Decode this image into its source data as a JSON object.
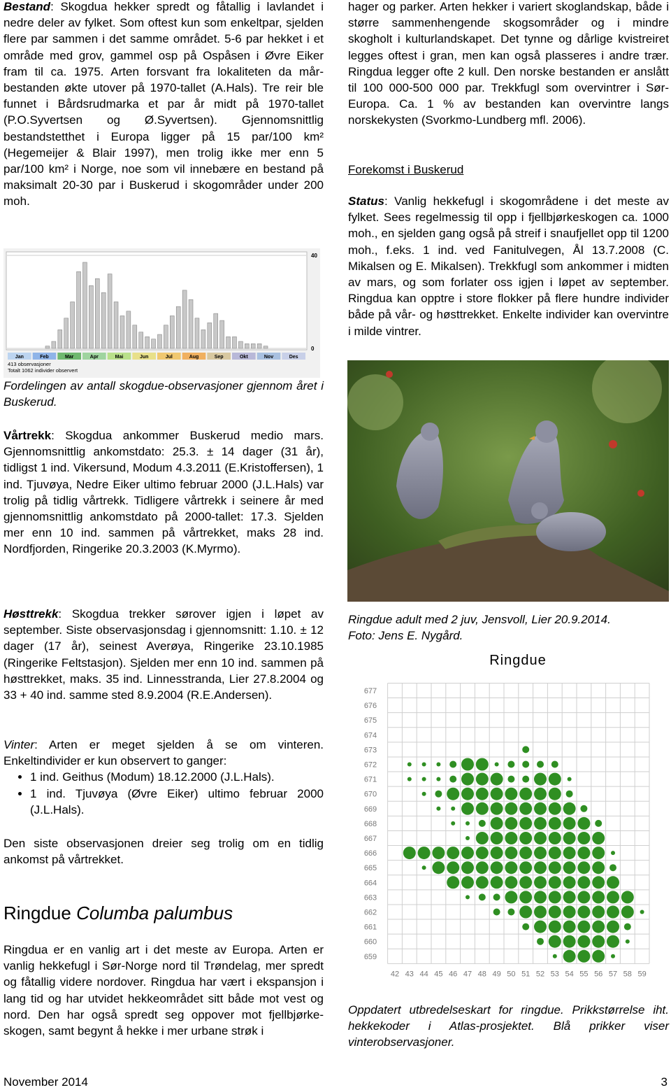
{
  "document": {
    "bestand": {
      "label": "Bestand",
      "text": ": Skogdua hekker spredt og fåtallig i lavlandet i nedre deler av fylket. Som oftest kun som enkeltpar, sjelden flere par sammen i det samme området. 5-6 par hekket i et område med grov, gammel osp på Ospåsen i Øvre Eiker fram til ca. 1975. Arten forsvant fra lokaliteten da mår-bestanden økte utover på 1970-tallet (A.Hals). Tre reir ble funnet i Bårdsrudmarka et par år midt på 1970-tallet (P.O.Syvertsen og Ø.Syvertsen). Gjennomsnittlig bestandstetthet i Europa ligger på 15 par/100 km² (Hegemeijer & Blair 1997), men trolig ikke mer enn 5 par/100 km² i Norge, noe som vil innebære en bestand på maksimalt 20-30 par i Buskerud i skogområder under 200 moh."
    },
    "chart_caption": "Fordelingen av antall skogdue-observasjoner gjennom året i Buskerud.",
    "vartrekk": {
      "label": "Vårtrekk",
      "text": ": Skogdua ankommer Buskerud medio mars. Gjennomsnittlig ankomstdato: 25.3. ± 14 dager (31 år), tidligst 1 ind. Vikersund, Modum 4.3.2011 (E.Kristoffersen), 1 ind. Tjuvøya, Nedre Eiker ultimo februar 2000 (J.L.Hals) var trolig på tidlig vårtrekk. Tidligere vårtrekk i seinere år med gjennomsnittlig ankomstdato på 2000-tallet: 17.3. Sjelden mer enn 10 ind. sammen på vårtrekket, maks 28 ind. Nordfjorden, Ringerike 20.3.2003 (K.Myrmo)."
    },
    "hosttrekk": {
      "label": "Høsttrekk",
      "text": ": Skogdua trekker sørover igjen i løpet av september. Siste observasjonsdag i gjennomsnitt: 1.10. ± 12 dager (17 år), seinest Averøya, Ringerike 23.10.1985 (Ringerike Feltstasjon). Sjelden mer enn 10 ind. sammen på høsttrekket, maks. 35 ind. Linnesstranda, Lier 27.8.2004 og 33 + 40 ind. samme sted 8.9.2004 (R.E.Andersen)."
    },
    "vinter": {
      "label": "Vinter",
      "text": ": Arten er meget sjelden å se om vinteren. Enkeltindivider er kun observert to ganger:",
      "bullets": [
        "1 ind. Geithus (Modum) 18.12.2000 (J.L.Hals).",
        "1 ind. Tjuvøya (Øvre Eiker) ultimo februar 2000 (J.L.Hals)."
      ]
    },
    "vinter_note": "Den siste observasjonen dreier seg trolig om en tidlig ankomst på vårtrekket.",
    "heading": {
      "name": "Ringdue",
      "latin": "Columba palumbus"
    },
    "ringdue_text": "Ringdua er en vanlig art i det meste av Europa. Arten er vanlig hekkefugl i Sør-Norge nord til Trøndelag, mer spredt og fåtallig videre nordover. Ringdua har vært i ekspansjon i lang tid og har utvidet hekkeområdet sitt både mot vest og nord. Den har også spredt seg oppover mot fjellbjørke-skogen, samt begynt å hekke i mer urbane strøk i",
    "ringdue_text_cont": "hager og parker. Arten hekker i variert skoglandskap, både i større sammenhengende skogsområder og i mindre skogholt i kulturlandskapet. Det tynne og dårlige kvistreiret legges oftest i gran, men kan også plasseres i andre trær. Ringdua legger ofte 2 kull. Den norske bestanden er anslått til 100 000-500 000 par. Trekkfugl som overvintrer i Sør-Europa. Ca. 1 % av bestanden kan overvintre langs norskekysten (Svorkmo-Lundberg mfl. 2006).",
    "forekomst": "Forekomst i Buskerud",
    "status": {
      "label": "Status",
      "text": ": Vanlig hekkefugl i skogområdene i det meste av fylket. Sees regelmessig til opp i fjellbjørkeskogen ca. 1000 moh., en sjelden gang også på streif i snaufjellet opp til 1200 moh., f.eks. 1 ind. ved Fanitulvegen, Ål 13.7.2008 (C. Mikalsen og E. Mikalsen). Trekkfugl som ankommer i midten av mars, og som forlater oss igjen i løpet av september. Ringdua kan opptre i store flokker på flere hundre individer både på vår- og høsttrekket. Enkelte individer kan overvintre i milde vintrer."
    },
    "photo_caption": [
      "Ringdue adult med 2 juv, Jensvoll, Lier 20.9.2014.",
      "Foto: Jens E. Nygård."
    ],
    "map_caption": "Oppdatert utbredelseskart for ringdue. Prikkstørrelse iht. hekkekoder i Atlas-prosjektet. Blå prikker viser vinterobservasjoner.",
    "footer": {
      "date": "November 2014",
      "page": "3"
    }
  },
  "chart_data": {
    "type": "bar",
    "color": "#c8c8c8",
    "categories": [
      "Jan",
      null,
      null,
      null,
      "Feb",
      null,
      null,
      null,
      "Mar",
      null,
      null,
      null,
      "Apr",
      null,
      null,
      null,
      "Mai",
      null,
      null,
      null,
      "Jun",
      null,
      null,
      null,
      "Jul",
      null,
      null,
      null,
      "Aug",
      null,
      null,
      null,
      "Sep",
      null,
      null,
      null,
      "Okt",
      null,
      null,
      null,
      "Nov",
      null,
      null,
      null,
      "Des",
      null,
      null,
      null
    ],
    "values": [
      0,
      0,
      0,
      0,
      0,
      0,
      1,
      3,
      8,
      13,
      20,
      33,
      37,
      27,
      30,
      24,
      32,
      20,
      14,
      16,
      10,
      7,
      5,
      4,
      6,
      10,
      14,
      18,
      25,
      21,
      13,
      8,
      11,
      15,
      12,
      5,
      5,
      3,
      2,
      2,
      2,
      1,
      0,
      0,
      0,
      0,
      0,
      0
    ],
    "ylim": [
      0,
      40
    ],
    "yticks": [
      0,
      40
    ],
    "annotations": [
      "413 observasjoner",
      "Totalt 1062 individer observert"
    ]
  },
  "map": {
    "title": "Ringdue",
    "color": "#2f8f22",
    "rows": [
      677,
      676,
      675,
      674,
      673,
      672,
      671,
      670,
      669,
      668,
      667,
      666,
      665,
      664,
      663,
      662,
      661,
      660,
      659
    ],
    "cols": [
      42,
      43,
      44,
      45,
      46,
      47,
      48,
      49,
      50,
      51,
      52,
      53,
      54,
      55,
      56,
      57,
      58,
      59
    ],
    "dots": [
      [
        0,
        0,
        0,
        0,
        0,
        0,
        0,
        0,
        0,
        0,
        0,
        0,
        0,
        0,
        0,
        0,
        0,
        0
      ],
      [
        0,
        0,
        0,
        0,
        0,
        0,
        0,
        0,
        0,
        0,
        0,
        0,
        0,
        0,
        0,
        0,
        0,
        0
      ],
      [
        0,
        0,
        0,
        0,
        0,
        0,
        0,
        0,
        0,
        0,
        0,
        0,
        0,
        0,
        0,
        0,
        0,
        0
      ],
      [
        0,
        0,
        0,
        0,
        0,
        0,
        0,
        0,
        0,
        0,
        0,
        0,
        0,
        0,
        0,
        0,
        0,
        0
      ],
      [
        0,
        0,
        0,
        0,
        0,
        0,
        0,
        0,
        0,
        2,
        0,
        0,
        0,
        0,
        0,
        0,
        0,
        0
      ],
      [
        0,
        1,
        1,
        1,
        2,
        3,
        3,
        1,
        2,
        2,
        2,
        2,
        0,
        0,
        0,
        0,
        0,
        0
      ],
      [
        0,
        1,
        1,
        1,
        2,
        3,
        3,
        3,
        2,
        2,
        3,
        3,
        1,
        0,
        0,
        0,
        0,
        0
      ],
      [
        0,
        0,
        1,
        2,
        3,
        3,
        3,
        3,
        3,
        3,
        3,
        3,
        2,
        0,
        0,
        0,
        0,
        0
      ],
      [
        0,
        0,
        0,
        1,
        1,
        3,
        3,
        3,
        3,
        3,
        3,
        3,
        3,
        2,
        0,
        0,
        0,
        0
      ],
      [
        0,
        0,
        0,
        0,
        1,
        1,
        2,
        3,
        3,
        3,
        3,
        3,
        3,
        3,
        2,
        0,
        0,
        0
      ],
      [
        0,
        0,
        0,
        0,
        0,
        1,
        3,
        3,
        3,
        3,
        3,
        3,
        3,
        3,
        3,
        0,
        0,
        0
      ],
      [
        0,
        3,
        3,
        3,
        3,
        3,
        3,
        3,
        3,
        3,
        3,
        3,
        3,
        3,
        3,
        1,
        0,
        0
      ],
      [
        0,
        0,
        1,
        3,
        3,
        3,
        3,
        3,
        3,
        3,
        3,
        3,
        3,
        3,
        3,
        2,
        0,
        0
      ],
      [
        0,
        0,
        0,
        0,
        3,
        3,
        3,
        3,
        3,
        3,
        3,
        3,
        3,
        3,
        3,
        3,
        0,
        0
      ],
      [
        0,
        0,
        0,
        0,
        0,
        1,
        2,
        2,
        3,
        3,
        3,
        3,
        3,
        3,
        3,
        3,
        3,
        0
      ],
      [
        0,
        0,
        0,
        0,
        0,
        0,
        0,
        2,
        2,
        3,
        3,
        3,
        3,
        3,
        3,
        3,
        3,
        1
      ],
      [
        0,
        0,
        0,
        0,
        0,
        0,
        0,
        0,
        0,
        2,
        3,
        3,
        3,
        3,
        3,
        3,
        2,
        0
      ],
      [
        0,
        0,
        0,
        0,
        0,
        0,
        0,
        0,
        0,
        0,
        2,
        3,
        3,
        3,
        3,
        3,
        1,
        0
      ],
      [
        0,
        0,
        0,
        0,
        0,
        0,
        0,
        0,
        0,
        0,
        0,
        1,
        3,
        3,
        3,
        1,
        0,
        0
      ]
    ]
  }
}
